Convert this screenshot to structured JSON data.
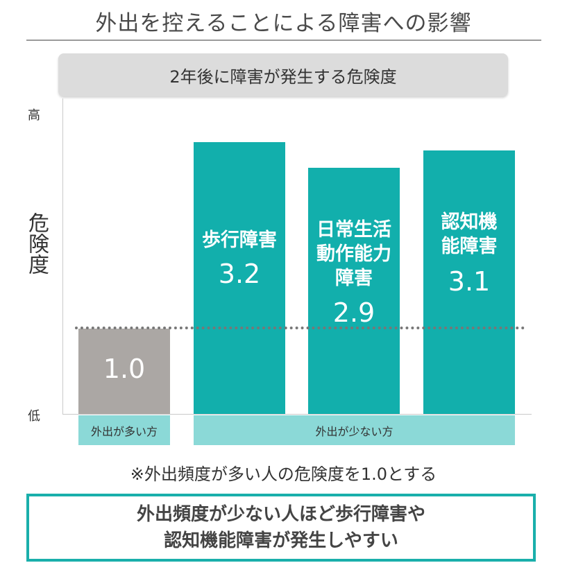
{
  "header": {
    "title": "外出を控えることによる障害への影響"
  },
  "subtitle": "2年後に障害が発生する危険度",
  "axis": {
    "y_label": "危険度",
    "y_high": "高",
    "y_low": "低"
  },
  "chart_data": {
    "type": "bar",
    "title": "外出を控えることによる障害への影響",
    "subtitle": "2年後に障害が発生する危険度",
    "ylabel": "危険度",
    "yticks": [
      "低",
      "高"
    ],
    "ylim": [
      0,
      3.35
    ],
    "reference_value": 1.0,
    "bars": [
      {
        "label": "",
        "label_lines": [],
        "value": 1.0,
        "value_text": "1.0",
        "group": "外出が多い方",
        "color": "#aba7a4"
      },
      {
        "label": "歩行障害",
        "label_lines": [
          "歩行障害"
        ],
        "value": 3.2,
        "value_text": "3.2",
        "group": "外出が少ない方",
        "color": "#12afac"
      },
      {
        "label": "日常生活動作能力障害",
        "label_lines": [
          "日常生活",
          "動作能力",
          "障害"
        ],
        "value": 2.9,
        "value_text": "2.9",
        "group": "外出が少ない方",
        "color": "#12afac"
      },
      {
        "label": "認知機能障害",
        "label_lines": [
          "認知機",
          "能障害"
        ],
        "value": 3.1,
        "value_text": "3.1",
        "group": "外出が少ない方",
        "color": "#12afac"
      }
    ],
    "groups": [
      {
        "name": "外出が多い方"
      },
      {
        "name": "外出が少ない方"
      }
    ],
    "grid": false
  },
  "note": "※外出頻度が多い人の危険度を1.0とする",
  "conclusion": {
    "line1": "外出頻度が少ない人ほど歩行障害や",
    "line2": "認知機能障害が発生しやすい"
  },
  "colors": {
    "accent": "#12afac",
    "baseline_bar": "#aba7a4",
    "group_label_bg": "#8bd9d7",
    "conclusion_border": "#1aafab"
  }
}
